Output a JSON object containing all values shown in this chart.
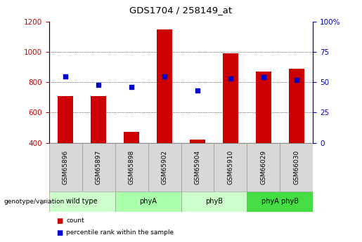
{
  "title": "GDS1704 / 258149_at",
  "samples": [
    "GSM65896",
    "GSM65897",
    "GSM65898",
    "GSM65902",
    "GSM65904",
    "GSM65910",
    "GSM66029",
    "GSM66030"
  ],
  "groups": [
    {
      "label": "wild type",
      "span": [
        0,
        2
      ],
      "color": "#ccffcc"
    },
    {
      "label": "phyA",
      "span": [
        2,
        4
      ],
      "color": "#aaffaa"
    },
    {
      "label": "phyB",
      "span": [
        4,
        6
      ],
      "color": "#ccffcc"
    },
    {
      "label": "phyA phyB",
      "span": [
        6,
        8
      ],
      "color": "#44dd44"
    }
  ],
  "counts": [
    710,
    710,
    470,
    1150,
    420,
    990,
    870,
    890
  ],
  "percentile": [
    55,
    48,
    46,
    55,
    43,
    53,
    54,
    52
  ],
  "ylim_left": [
    400,
    1200
  ],
  "ylim_right": [
    0,
    100
  ],
  "yticks_left": [
    400,
    600,
    800,
    1000,
    1200
  ],
  "yticks_right": [
    0,
    25,
    50,
    75,
    100
  ],
  "bar_color": "#cc0000",
  "dot_color": "#0000cc",
  "label_color_left": "#cc0000",
  "label_color_right": "#0000cc",
  "legend_items": [
    {
      "label": "count",
      "color": "#cc0000"
    },
    {
      "label": "percentile rank within the sample",
      "color": "#0000cc"
    }
  ],
  "genotype_label": "genotype/variation"
}
